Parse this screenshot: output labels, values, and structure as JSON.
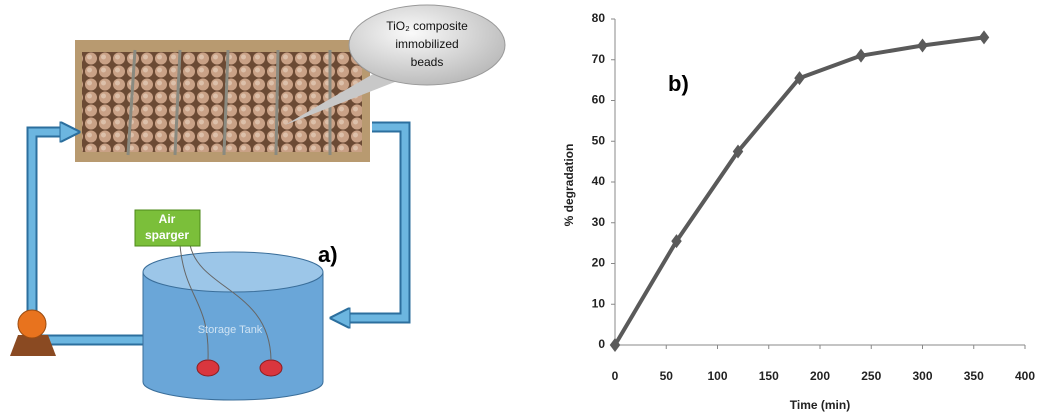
{
  "diagram": {
    "callout_lines": [
      "TiO₂ composite",
      "immobilized",
      "beads"
    ],
    "sparger_lines": [
      "Air",
      "sparger"
    ],
    "tank_label": "Storage Tank",
    "panel_label": "a)"
  },
  "chart_data": {
    "type": "line",
    "annotation": "b)",
    "x_label": "Time (min)",
    "y_label": "% degradation",
    "x": [
      0,
      60,
      120,
      180,
      240,
      300,
      360
    ],
    "series": [
      {
        "color": "#5a5a5a",
        "values": [
          0,
          25.5,
          47.5,
          65.5,
          71,
          73.5,
          75.5
        ]
      }
    ],
    "xlim": [
      0,
      400
    ],
    "xticks": [
      0,
      50,
      100,
      150,
      200,
      250,
      300,
      350,
      400
    ],
    "ylim": [
      0,
      80
    ],
    "yticks": [
      0,
      10,
      20,
      30,
      40,
      50,
      60,
      70,
      80
    ],
    "grid": false,
    "marker": "diamond"
  }
}
